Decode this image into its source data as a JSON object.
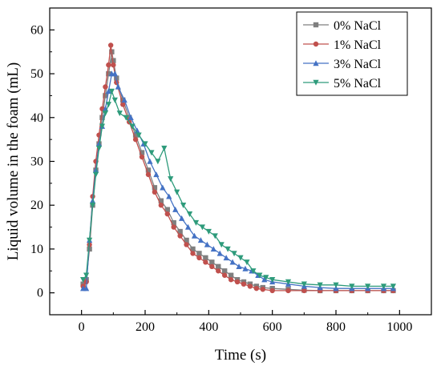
{
  "chart_data": {
    "type": "line",
    "title": "",
    "xlabel": "Time (s)",
    "ylabel": "Liquid volume in the foam (mL)",
    "xlim": [
      -100,
      1100
    ],
    "ylim": [
      -5,
      65
    ],
    "xticks": [
      0,
      200,
      400,
      600,
      800,
      1000
    ],
    "yticks": [
      0,
      10,
      20,
      30,
      40,
      50,
      60
    ],
    "legend_position": "top-right",
    "grid": false,
    "series": [
      {
        "name": "0% NaCl",
        "color": "#7f7f7f",
        "marker": "square",
        "points": [
          [
            5,
            2
          ],
          [
            15,
            3
          ],
          [
            25,
            10
          ],
          [
            35,
            20
          ],
          [
            45,
            28
          ],
          [
            55,
            34
          ],
          [
            65,
            40
          ],
          [
            75,
            45
          ],
          [
            85,
            50
          ],
          [
            95,
            55
          ],
          [
            100,
            53
          ],
          [
            110,
            49
          ],
          [
            130,
            44
          ],
          [
            150,
            40
          ],
          [
            170,
            36
          ],
          [
            190,
            32
          ],
          [
            210,
            28
          ],
          [
            230,
            24
          ],
          [
            250,
            21
          ],
          [
            270,
            19
          ],
          [
            290,
            16
          ],
          [
            310,
            14
          ],
          [
            330,
            12
          ],
          [
            350,
            10
          ],
          [
            370,
            9
          ],
          [
            390,
            8
          ],
          [
            410,
            7
          ],
          [
            430,
            6
          ],
          [
            450,
            5
          ],
          [
            470,
            4
          ],
          [
            490,
            3
          ],
          [
            510,
            2.5
          ],
          [
            530,
            2
          ],
          [
            550,
            1.5
          ],
          [
            570,
            1.2
          ],
          [
            600,
            1
          ],
          [
            650,
            0.8
          ],
          [
            700,
            0.6
          ],
          [
            750,
            0.5
          ],
          [
            800,
            0.5
          ],
          [
            850,
            0.5
          ],
          [
            900,
            0.5
          ],
          [
            950,
            0.5
          ],
          [
            980,
            0.5
          ]
        ]
      },
      {
        "name": "1% NaCl",
        "color": "#c0504d",
        "marker": "circle",
        "points": [
          [
            5,
            1.5
          ],
          [
            15,
            2.5
          ],
          [
            25,
            11
          ],
          [
            35,
            22
          ],
          [
            45,
            30
          ],
          [
            55,
            36
          ],
          [
            65,
            42
          ],
          [
            75,
            47
          ],
          [
            85,
            52
          ],
          [
            92,
            56.5
          ],
          [
            100,
            52
          ],
          [
            110,
            48
          ],
          [
            130,
            43
          ],
          [
            150,
            39
          ],
          [
            170,
            35
          ],
          [
            190,
            31
          ],
          [
            210,
            27
          ],
          [
            230,
            23
          ],
          [
            250,
            20
          ],
          [
            270,
            18
          ],
          [
            290,
            15
          ],
          [
            310,
            13
          ],
          [
            330,
            11
          ],
          [
            350,
            9
          ],
          [
            370,
            8
          ],
          [
            390,
            7
          ],
          [
            410,
            6
          ],
          [
            430,
            5
          ],
          [
            450,
            4
          ],
          [
            470,
            3
          ],
          [
            490,
            2.5
          ],
          [
            510,
            2
          ],
          [
            530,
            1.5
          ],
          [
            550,
            1
          ],
          [
            570,
            0.8
          ],
          [
            600,
            0.5
          ],
          [
            650,
            0.5
          ],
          [
            700,
            0.5
          ],
          [
            750,
            0.5
          ],
          [
            800,
            0.5
          ],
          [
            850,
            0.5
          ],
          [
            900,
            0.5
          ],
          [
            950,
            0.5
          ],
          [
            980,
            0.5
          ]
        ]
      },
      {
        "name": "3% NaCl",
        "color": "#4472c4",
        "marker": "triangle-up",
        "points": [
          [
            5,
            1
          ],
          [
            15,
            1
          ],
          [
            25,
            12
          ],
          [
            35,
            21
          ],
          [
            45,
            28
          ],
          [
            55,
            34
          ],
          [
            65,
            38
          ],
          [
            75,
            42
          ],
          [
            85,
            46
          ],
          [
            95,
            50
          ],
          [
            105,
            50
          ],
          [
            115,
            47
          ],
          [
            135,
            44
          ],
          [
            155,
            40
          ],
          [
            175,
            37
          ],
          [
            195,
            34
          ],
          [
            215,
            30
          ],
          [
            235,
            27
          ],
          [
            255,
            24
          ],
          [
            275,
            22
          ],
          [
            295,
            19
          ],
          [
            315,
            17
          ],
          [
            335,
            15
          ],
          [
            355,
            13
          ],
          [
            375,
            12
          ],
          [
            395,
            11
          ],
          [
            415,
            10
          ],
          [
            435,
            9
          ],
          [
            455,
            8
          ],
          [
            475,
            7
          ],
          [
            495,
            6
          ],
          [
            515,
            5.5
          ],
          [
            535,
            5
          ],
          [
            555,
            4
          ],
          [
            575,
            3
          ],
          [
            600,
            2.5
          ],
          [
            650,
            2
          ],
          [
            700,
            1.5
          ],
          [
            750,
            1.2
          ],
          [
            800,
            1
          ],
          [
            850,
            1
          ],
          [
            900,
            1
          ],
          [
            950,
            1
          ],
          [
            980,
            1
          ]
        ]
      },
      {
        "name": "5% NaCl",
        "color": "#2e9b7b",
        "marker": "triangle-down",
        "points": [
          [
            5,
            3
          ],
          [
            15,
            4
          ],
          [
            25,
            12
          ],
          [
            35,
            20
          ],
          [
            45,
            27
          ],
          [
            55,
            33
          ],
          [
            65,
            38
          ],
          [
            75,
            41
          ],
          [
            85,
            43
          ],
          [
            95,
            46
          ],
          [
            105,
            44
          ],
          [
            120,
            41
          ],
          [
            140,
            40
          ],
          [
            160,
            38
          ],
          [
            180,
            36
          ],
          [
            200,
            34
          ],
          [
            220,
            32
          ],
          [
            240,
            30
          ],
          [
            260,
            33
          ],
          [
            280,
            26
          ],
          [
            300,
            23
          ],
          [
            320,
            20
          ],
          [
            340,
            18
          ],
          [
            360,
            16
          ],
          [
            380,
            15
          ],
          [
            400,
            14
          ],
          [
            420,
            13
          ],
          [
            440,
            11
          ],
          [
            460,
            10
          ],
          [
            480,
            9
          ],
          [
            500,
            8
          ],
          [
            520,
            7
          ],
          [
            540,
            5
          ],
          [
            560,
            4
          ],
          [
            580,
            3.5
          ],
          [
            600,
            3
          ],
          [
            650,
            2.5
          ],
          [
            700,
            2
          ],
          [
            750,
            1.8
          ],
          [
            800,
            1.8
          ],
          [
            850,
            1.5
          ],
          [
            900,
            1.5
          ],
          [
            950,
            1.5
          ],
          [
            980,
            1.5
          ]
        ]
      }
    ]
  }
}
